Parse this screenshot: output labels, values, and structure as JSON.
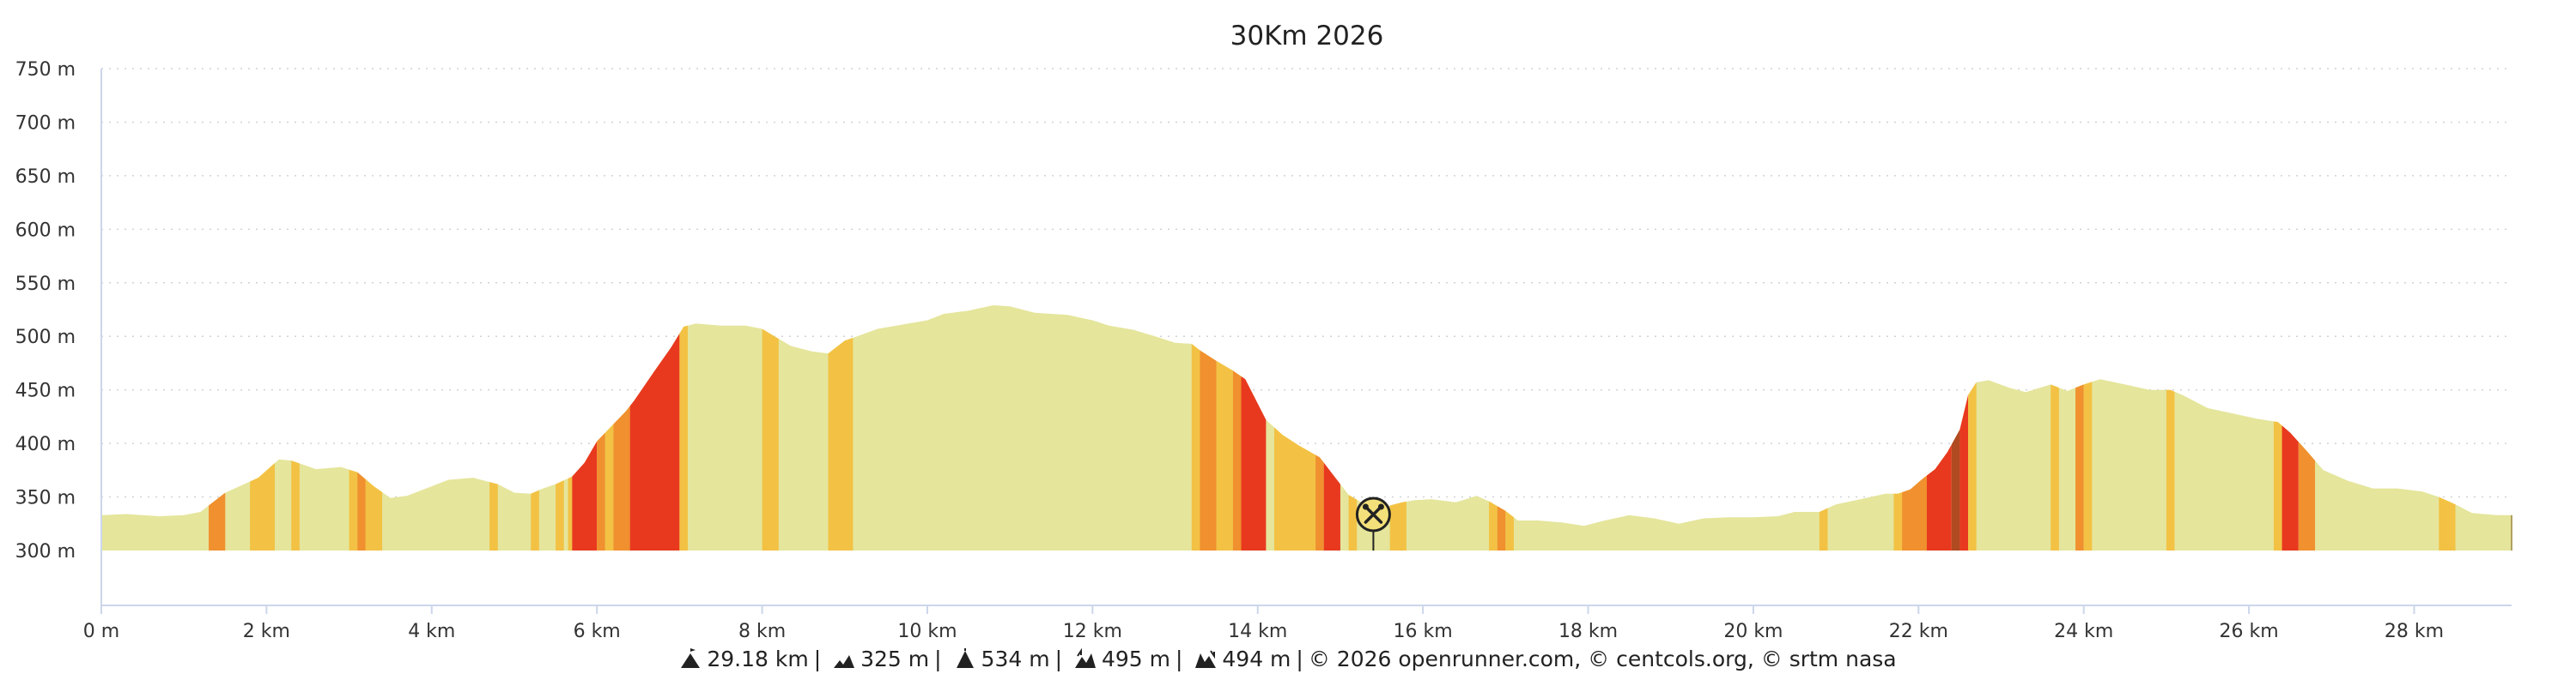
{
  "chart_data": {
    "type": "area",
    "title": "30Km 2026",
    "y_unit": "m",
    "x_unit": "km",
    "ylim": [
      300,
      750
    ],
    "xlim": [
      0,
      29.18
    ],
    "y_ticks": [
      {
        "value": 300,
        "label": "300 m"
      },
      {
        "value": 350,
        "label": "350 m"
      },
      {
        "value": 400,
        "label": "400 m"
      },
      {
        "value": 450,
        "label": "450 m"
      },
      {
        "value": 500,
        "label": "500 m"
      },
      {
        "value": 550,
        "label": "550 m"
      },
      {
        "value": 600,
        "label": "600 m"
      },
      {
        "value": 650,
        "label": "650 m"
      },
      {
        "value": 700,
        "label": "700 m"
      },
      {
        "value": 750,
        "label": "750 m"
      }
    ],
    "x_ticks": [
      {
        "value": 0,
        "label": "0 m"
      },
      {
        "value": 2,
        "label": "2 km"
      },
      {
        "value": 4,
        "label": "4 km"
      },
      {
        "value": 6,
        "label": "6 km"
      },
      {
        "value": 8,
        "label": "8 km"
      },
      {
        "value": 10,
        "label": "10 km"
      },
      {
        "value": 12,
        "label": "12 km"
      },
      {
        "value": 14,
        "label": "14 km"
      },
      {
        "value": 16,
        "label": "16 km"
      },
      {
        "value": 18,
        "label": "18 km"
      },
      {
        "value": 20,
        "label": "20 km"
      },
      {
        "value": 22,
        "label": "22 km"
      },
      {
        "value": 24,
        "label": "24 km"
      },
      {
        "value": 26,
        "label": "26 km"
      },
      {
        "value": 28,
        "label": "28 km"
      }
    ],
    "grid": true,
    "profile": [
      [
        0,
        333
      ],
      [
        0.3,
        334
      ],
      [
        0.7,
        332
      ],
      [
        1.0,
        333
      ],
      [
        1.2,
        336
      ],
      [
        1.3,
        342
      ],
      [
        1.5,
        354
      ],
      [
        1.9,
        368
      ],
      [
        2.15,
        385
      ],
      [
        2.3,
        384
      ],
      [
        2.6,
        376
      ],
      [
        2.9,
        378
      ],
      [
        3.1,
        373
      ],
      [
        3.3,
        360
      ],
      [
        3.5,
        349
      ],
      [
        3.7,
        351
      ],
      [
        4.0,
        360
      ],
      [
        4.2,
        366
      ],
      [
        4.5,
        368
      ],
      [
        4.8,
        362
      ],
      [
        5.0,
        354
      ],
      [
        5.2,
        353
      ],
      [
        5.35,
        358
      ],
      [
        5.5,
        362
      ],
      [
        5.7,
        369
      ],
      [
        5.85,
        382
      ],
      [
        6.0,
        402
      ],
      [
        6.2,
        418
      ],
      [
        6.35,
        430
      ],
      [
        6.45,
        440
      ],
      [
        6.7,
        468
      ],
      [
        6.9,
        490
      ],
      [
        7.05,
        509
      ],
      [
        7.2,
        512
      ],
      [
        7.5,
        510
      ],
      [
        7.8,
        510
      ],
      [
        8.0,
        507
      ],
      [
        8.15,
        500
      ],
      [
        8.35,
        491
      ],
      [
        8.6,
        486
      ],
      [
        8.8,
        484
      ],
      [
        9.0,
        496
      ],
      [
        9.15,
        500
      ],
      [
        9.4,
        507
      ],
      [
        9.7,
        511
      ],
      [
        10.0,
        515
      ],
      [
        10.2,
        521
      ],
      [
        10.5,
        524
      ],
      [
        10.8,
        529
      ],
      [
        11.0,
        528
      ],
      [
        11.3,
        522
      ],
      [
        11.7,
        520
      ],
      [
        12.0,
        515
      ],
      [
        12.2,
        510
      ],
      [
        12.5,
        506
      ],
      [
        12.8,
        499
      ],
      [
        13.0,
        494
      ],
      [
        13.2,
        493
      ],
      [
        13.3,
        487
      ],
      [
        13.5,
        477
      ],
      [
        13.7,
        468
      ],
      [
        13.85,
        460
      ],
      [
        14.1,
        422
      ],
      [
        14.3,
        408
      ],
      [
        14.5,
        398
      ],
      [
        14.75,
        387
      ],
      [
        14.9,
        372
      ],
      [
        15.1,
        352
      ],
      [
        15.3,
        343
      ],
      [
        15.5,
        340
      ],
      [
        15.75,
        345
      ],
      [
        15.9,
        347
      ],
      [
        16.1,
        348
      ],
      [
        16.4,
        345
      ],
      [
        16.65,
        351
      ],
      [
        16.8,
        346
      ],
      [
        17.0,
        337
      ],
      [
        17.15,
        328
      ],
      [
        17.4,
        328
      ],
      [
        17.7,
        326
      ],
      [
        17.95,
        323
      ],
      [
        18.2,
        328
      ],
      [
        18.5,
        333
      ],
      [
        18.8,
        330
      ],
      [
        19.1,
        325
      ],
      [
        19.4,
        330
      ],
      [
        19.7,
        331
      ],
      [
        20.0,
        331
      ],
      [
        20.3,
        332
      ],
      [
        20.5,
        336
      ],
      [
        20.8,
        336
      ],
      [
        21.0,
        343
      ],
      [
        21.3,
        348
      ],
      [
        21.6,
        353
      ],
      [
        21.75,
        353
      ],
      [
        21.9,
        357
      ],
      [
        22.05,
        367
      ],
      [
        22.2,
        376
      ],
      [
        22.35,
        392
      ],
      [
        22.5,
        413
      ],
      [
        22.6,
        445
      ],
      [
        22.7,
        457
      ],
      [
        22.85,
        459
      ],
      [
        23.1,
        452
      ],
      [
        23.3,
        448
      ],
      [
        23.6,
        455
      ],
      [
        23.8,
        449
      ],
      [
        24.0,
        455
      ],
      [
        24.2,
        460
      ],
      [
        24.5,
        455
      ],
      [
        24.8,
        450
      ],
      [
        25.05,
        450
      ],
      [
        25.2,
        445
      ],
      [
        25.5,
        433
      ],
      [
        25.8,
        428
      ],
      [
        26.1,
        423
      ],
      [
        26.35,
        420
      ],
      [
        26.5,
        410
      ],
      [
        26.7,
        393
      ],
      [
        26.9,
        375
      ],
      [
        27.2,
        365
      ],
      [
        27.5,
        358
      ],
      [
        27.8,
        358
      ],
      [
        28.1,
        355
      ],
      [
        28.3,
        350
      ],
      [
        28.5,
        343
      ],
      [
        28.7,
        335
      ],
      [
        29.0,
        333
      ],
      [
        29.18,
        333
      ]
    ],
    "slope_bands": [
      {
        "x": [
          1.3,
          1.5
        ],
        "color": "#f0902e"
      },
      {
        "x": [
          1.8,
          2.1
        ],
        "color": "#f3c244"
      },
      {
        "x": [
          2.3,
          2.4
        ],
        "color": "#f3c244"
      },
      {
        "x": [
          3.0,
          3.1
        ],
        "color": "#f3c244"
      },
      {
        "x": [
          3.1,
          3.2
        ],
        "color": "#f0902e"
      },
      {
        "x": [
          3.2,
          3.4
        ],
        "color": "#f3c244"
      },
      {
        "x": [
          4.7,
          4.8
        ],
        "color": "#f3c244"
      },
      {
        "x": [
          5.2,
          5.3
        ],
        "color": "#f3c244"
      },
      {
        "x": [
          5.5,
          5.6
        ],
        "color": "#f3c244"
      },
      {
        "x": [
          5.65,
          5.7
        ],
        "color": "#f3c244"
      },
      {
        "x": [
          5.7,
          6.0
        ],
        "color": "#e8391f"
      },
      {
        "x": [
          6.0,
          6.1
        ],
        "color": "#f0902e"
      },
      {
        "x": [
          6.1,
          6.2
        ],
        "color": "#f3c244"
      },
      {
        "x": [
          6.2,
          6.4
        ],
        "color": "#f0902e"
      },
      {
        "x": [
          6.4,
          7.0
        ],
        "color": "#e8391f"
      },
      {
        "x": [
          7.0,
          7.1
        ],
        "color": "#f3c244"
      },
      {
        "x": [
          8.0,
          8.2
        ],
        "color": "#f3c244"
      },
      {
        "x": [
          8.8,
          9.1
        ],
        "color": "#f3c244"
      },
      {
        "x": [
          13.2,
          13.3
        ],
        "color": "#f3c244"
      },
      {
        "x": [
          13.3,
          13.5
        ],
        "color": "#f0902e"
      },
      {
        "x": [
          13.5,
          13.7
        ],
        "color": "#f3c244"
      },
      {
        "x": [
          13.7,
          13.8
        ],
        "color": "#f0902e"
      },
      {
        "x": [
          13.8,
          14.1
        ],
        "color": "#e8391f"
      },
      {
        "x": [
          14.2,
          14.7
        ],
        "color": "#f3c244"
      },
      {
        "x": [
          14.7,
          14.8
        ],
        "color": "#f0902e"
      },
      {
        "x": [
          14.8,
          15.0
        ],
        "color": "#e8391f"
      },
      {
        "x": [
          15.1,
          15.2
        ],
        "color": "#f3c244"
      },
      {
        "x": [
          15.6,
          15.8
        ],
        "color": "#f3c244"
      },
      {
        "x": [
          16.8,
          16.9
        ],
        "color": "#f3c244"
      },
      {
        "x": [
          16.9,
          17.0
        ],
        "color": "#f0902e"
      },
      {
        "x": [
          17.0,
          17.1
        ],
        "color": "#f3c244"
      },
      {
        "x": [
          20.8,
          20.9
        ],
        "color": "#f3c244"
      },
      {
        "x": [
          21.7,
          21.8
        ],
        "color": "#f3c244"
      },
      {
        "x": [
          21.8,
          22.1
        ],
        "color": "#f0902e"
      },
      {
        "x": [
          22.1,
          22.4
        ],
        "color": "#e8391f"
      },
      {
        "x": [
          22.4,
          22.5
        ],
        "color": "#b04a20"
      },
      {
        "x": [
          22.5,
          22.6
        ],
        "color": "#e8391f"
      },
      {
        "x": [
          22.6,
          22.7
        ],
        "color": "#f3c244"
      },
      {
        "x": [
          23.6,
          23.7
        ],
        "color": "#f3c244"
      },
      {
        "x": [
          23.9,
          24.0
        ],
        "color": "#f0902e"
      },
      {
        "x": [
          24.0,
          24.1
        ],
        "color": "#f3c244"
      },
      {
        "x": [
          25.0,
          25.1
        ],
        "color": "#f3c244"
      },
      {
        "x": [
          26.3,
          26.4
        ],
        "color": "#f3c244"
      },
      {
        "x": [
          26.4,
          26.6
        ],
        "color": "#e8391f"
      },
      {
        "x": [
          26.6,
          26.8
        ],
        "color": "#f0902e"
      },
      {
        "x": [
          28.3,
          28.5
        ],
        "color": "#f3c244"
      }
    ],
    "base_color": "#e5e59c",
    "grid_color": "#cfd2d6",
    "axis_color": "#ccd6eb",
    "marker": {
      "x": 15.4,
      "icon": "fork-knife-icon"
    }
  },
  "footer": {
    "distance": "29.18 km",
    "min_altitude": "325 m",
    "max_altitude": "534 m",
    "elevation_gain": "495 m",
    "elevation_loss": "494 m",
    "credits": "© 2026 openrunner.com, © centcols.org, © srtm nasa",
    "separator": "|"
  }
}
